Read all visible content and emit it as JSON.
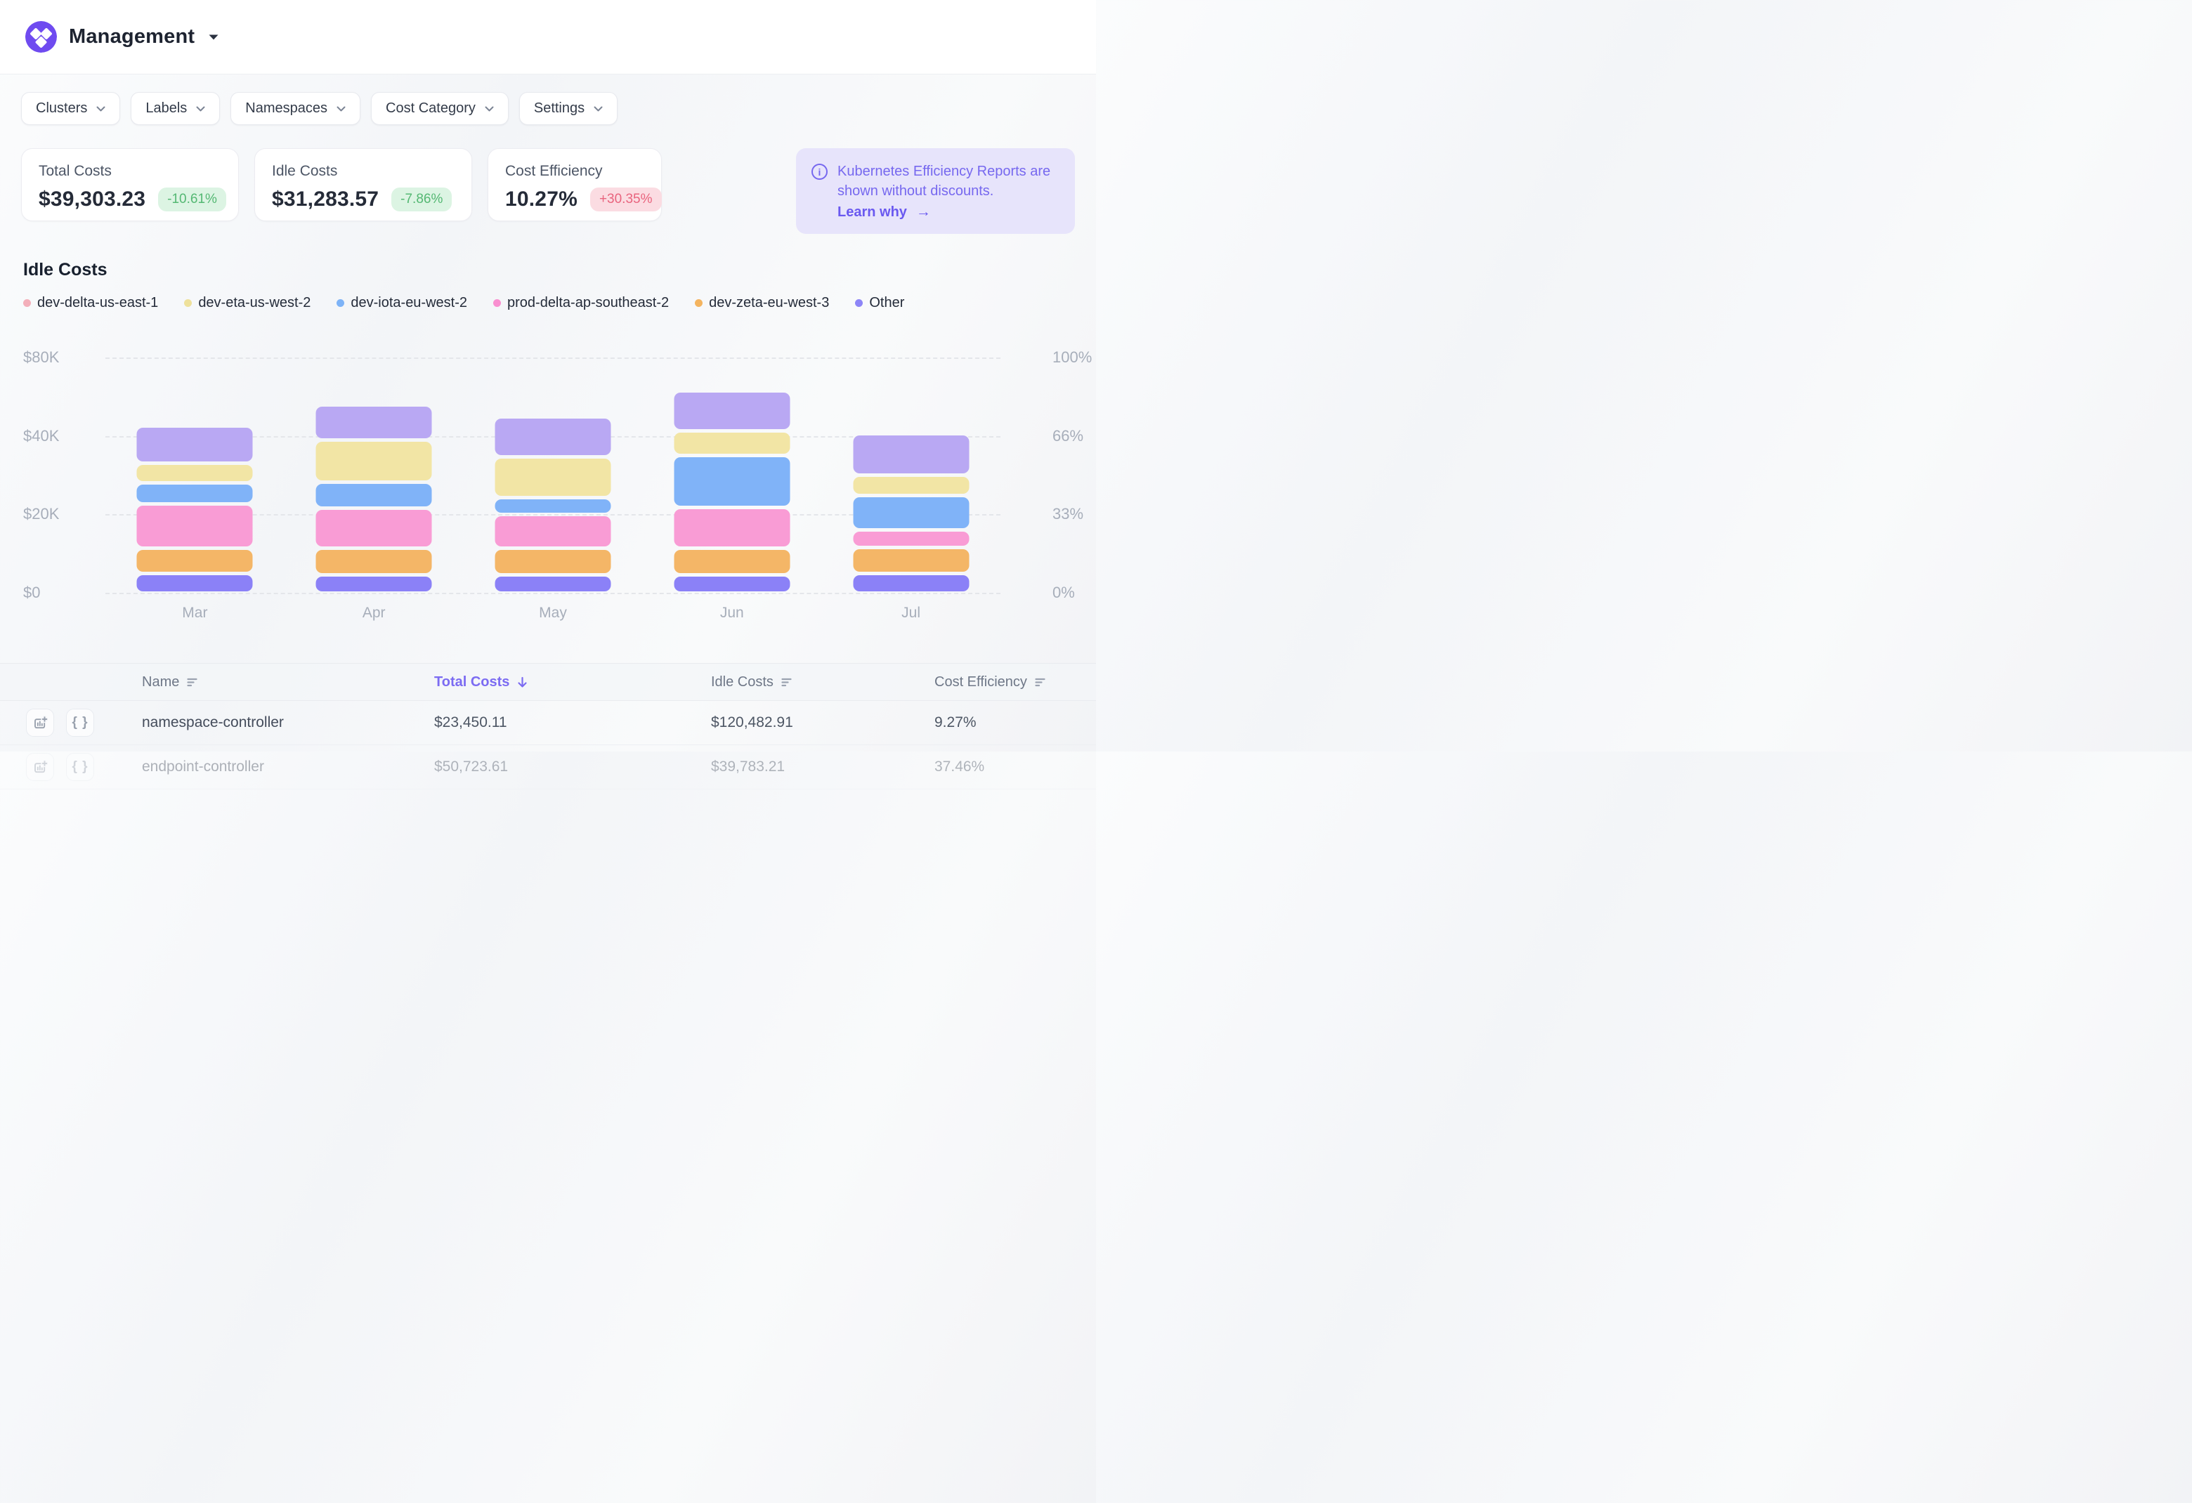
{
  "header": {
    "title": "Management"
  },
  "filters": [
    {
      "label": "Clusters"
    },
    {
      "label": "Labels"
    },
    {
      "label": "Namespaces"
    },
    {
      "label": "Cost Category"
    },
    {
      "label": "Settings"
    }
  ],
  "stats": [
    {
      "label": "Total Costs",
      "value": "$39,303.23",
      "delta": "-10.61%",
      "tone": "green"
    },
    {
      "label": "Idle Costs",
      "value": "$31,283.57",
      "delta": "-7.86%",
      "tone": "green"
    },
    {
      "label": "Cost Efficiency",
      "value": "10.27%",
      "delta": "+30.35%",
      "tone": "red"
    }
  ],
  "banner": {
    "text": "Kubernetes Efficiency Reports are shown without discounts.",
    "link_label": "Learn why",
    "arrow": "→"
  },
  "chart_data": {
    "type": "bar",
    "stacked": true,
    "title": "Idle Costs",
    "x": [
      "Mar",
      "Apr",
      "May",
      "Jun",
      "Jul"
    ],
    "unit": "USD thousands",
    "y_axis_left": {
      "labels_top_to_bottom": [
        "$80K",
        "$40K",
        "$20K",
        "$0"
      ]
    },
    "y_axis_right": {
      "labels_top_to_bottom": [
        "100%",
        "66%",
        "33%",
        "0%"
      ]
    },
    "grid": "horizontal dashed, 4 evenly spaced lines",
    "legend_position": "top",
    "axis_note": "left tick labels $0/$20K/$40K/$80K are evenly spaced; segment values mapped piecewise to that scale",
    "series_top_to_bottom": [
      {
        "name": "dev-delta-us-east-1",
        "legend_dot_color": "#f3afba",
        "bar_color": "#b9a8f3",
        "values_k": [
          12.2,
          17.0,
          14.9,
          20.6,
          11.3
        ]
      },
      {
        "name": "dev-eta-us-west-2",
        "legend_dot_color": "#eee19b",
        "bar_color": "#f2e5a5",
        "values_k": [
          4.9,
          10.6,
          10.4,
          7.3,
          5.2
        ]
      },
      {
        "name": "dev-iota-eu-west-2",
        "legend_dot_color": "#7db3f7",
        "bar_color": "#80b3f8",
        "values_k": [
          5.5,
          6.7,
          4.3,
          13.4,
          8.7
        ]
      },
      {
        "name": "prod-delta-ap-southeast-2",
        "legend_dot_color": "#f98fd0",
        "bar_color": "#f99cd5",
        "values_k": [
          11.3,
          10.3,
          8.7,
          10.4,
          4.6
        ]
      },
      {
        "name": "dev-zeta-eu-west-3",
        "legend_dot_color": "#f4b45f",
        "bar_color": "#f4b667",
        "values_k": [
          6.3,
          6.8,
          6.8,
          6.7,
          6.5
        ]
      },
      {
        "name": "Other",
        "legend_dot_color": "#8d85f7",
        "bar_color": "#8b81f7",
        "values_k": [
          5.0,
          4.5,
          4.5,
          4.6,
          5.0
        ]
      }
    ],
    "totals_k": [
      45.2,
      55.9,
      49.5,
      62.9,
      41.3
    ]
  },
  "table": {
    "headers": [
      {
        "label": "Name",
        "icon": "sort-lines",
        "active": false
      },
      {
        "label": "Total Costs",
        "icon": "arrow-down",
        "active": true
      },
      {
        "label": "Idle Costs",
        "icon": "sort-lines",
        "active": false
      },
      {
        "label": "Cost Efficiency",
        "icon": "sort-lines",
        "active": false
      }
    ],
    "rows": [
      {
        "name": "namespace-controller",
        "total_costs": "$23,450.11",
        "idle_costs": "$120,482.91",
        "cost_efficiency": "9.27%",
        "muted": false
      },
      {
        "name": "endpoint-controller",
        "total_costs": "$50,723.61",
        "idle_costs": "$39,783.21",
        "cost_efficiency": "37.46%",
        "muted": true
      }
    ]
  },
  "colors": {
    "accent_purple": "#7b6bf2",
    "banner_bg": "#e7e4fb",
    "badge_green_bg": "#dcf4e3",
    "badge_green_text": "#54b873",
    "badge_red_bg": "#fbdce2",
    "badge_red_text": "#e9647e",
    "logo_purple": "#6f4bf0",
    "axis_text": "#a7aeba"
  }
}
